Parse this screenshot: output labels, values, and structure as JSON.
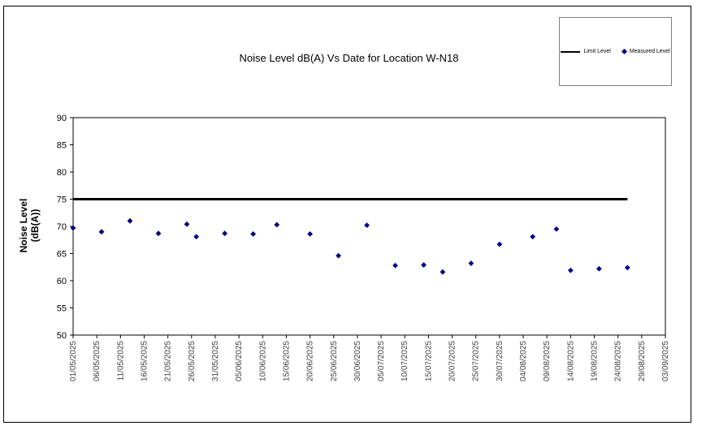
{
  "window": {
    "background": "#ffffff",
    "border_color": "#000000"
  },
  "legend": {
    "position": "top-right",
    "items": [
      {
        "label": "Limit Level",
        "marker": "line-icon",
        "color": "#000000"
      },
      {
        "label": "Measured Level",
        "marker": "diamond-icon",
        "color": "#000080"
      }
    ]
  },
  "chart_data": {
    "type": "scatter",
    "title": "Noise Level dB(A) Vs Date for Location W-N18",
    "xlabel": "",
    "ylabel": "Noise Level (dB(A))",
    "ylabel_lines": [
      "Noise Level",
      "(dB(A))"
    ],
    "ylim": [
      50,
      90
    ],
    "ytick_step": 5,
    "yticks": [
      50,
      55,
      60,
      65,
      70,
      75,
      80,
      85,
      90
    ],
    "grid": false,
    "legend_position": "top-right",
    "x_axis": {
      "start_date": "01/05/2025",
      "end_date": "03/09/2025",
      "span_days": 125,
      "tick_interval_days": 5,
      "tick_labels": [
        "01/05/2025",
        "06/05/2025",
        "11/05/2025",
        "16/05/2025",
        "21/05/2025",
        "26/05/2025",
        "31/05/2025",
        "05/06/2025",
        "10/06/2025",
        "15/06/2025",
        "20/06/2025",
        "25/06/2025",
        "30/06/2025",
        "05/07/2025",
        "10/07/2025",
        "15/07/2025",
        "20/07/2025",
        "25/07/2025",
        "30/07/2025",
        "04/08/2025",
        "09/08/2025",
        "14/08/2025",
        "19/08/2025",
        "24/08/2025",
        "29/08/2025",
        "03/09/2025"
      ]
    },
    "series": [
      {
        "name": "Limit Level",
        "type": "line",
        "color": "#000000",
        "value": 75,
        "x_start_day": 0,
        "x_end_day": 117
      },
      {
        "name": "Measured Level",
        "type": "scatter",
        "color": "#000080",
        "marker": "diamond",
        "points": [
          {
            "date": "01/05/2025",
            "day": 0,
            "value": 69.7
          },
          {
            "date": "07/05/2025",
            "day": 6,
            "value": 69.0
          },
          {
            "date": "13/05/2025",
            "day": 12,
            "value": 71.0
          },
          {
            "date": "19/05/2025",
            "day": 18,
            "value": 68.7
          },
          {
            "date": "25/05/2025",
            "day": 24,
            "value": 70.4
          },
          {
            "date": "27/05/2025",
            "day": 26,
            "value": 68.1
          },
          {
            "date": "02/06/2025",
            "day": 32,
            "value": 68.7
          },
          {
            "date": "08/06/2025",
            "day": 38,
            "value": 68.6
          },
          {
            "date": "13/06/2025",
            "day": 43,
            "value": 70.3
          },
          {
            "date": "20/06/2025",
            "day": 50,
            "value": 68.6
          },
          {
            "date": "26/06/2025",
            "day": 56,
            "value": 64.6
          },
          {
            "date": "02/07/2025",
            "day": 62,
            "value": 70.2
          },
          {
            "date": "08/07/2025",
            "day": 68,
            "value": 62.8
          },
          {
            "date": "14/07/2025",
            "day": 74,
            "value": 62.9
          },
          {
            "date": "18/07/2025",
            "day": 78,
            "value": 61.6
          },
          {
            "date": "24/07/2025",
            "day": 84,
            "value": 63.2
          },
          {
            "date": "30/07/2025",
            "day": 90,
            "value": 66.7
          },
          {
            "date": "06/08/2025",
            "day": 97,
            "value": 68.1
          },
          {
            "date": "11/08/2025",
            "day": 102,
            "value": 69.5
          },
          {
            "date": "14/08/2025",
            "day": 105,
            "value": 61.9
          },
          {
            "date": "20/08/2025",
            "day": 111,
            "value": 62.2
          },
          {
            "date": "26/08/2025",
            "day": 117,
            "value": 62.4
          }
        ]
      }
    ]
  }
}
